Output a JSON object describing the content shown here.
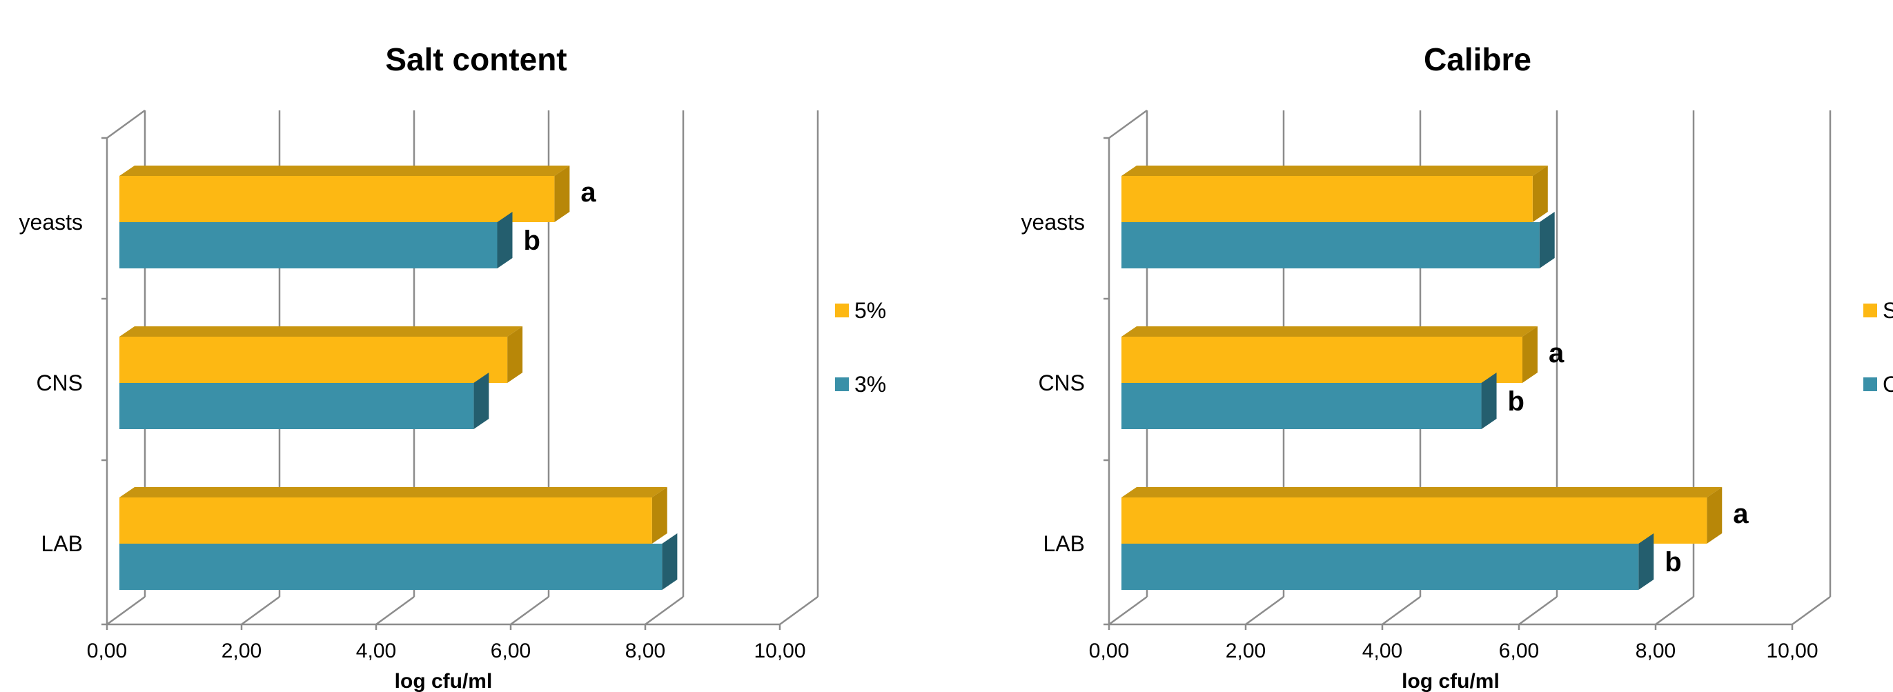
{
  "colors": {
    "series_top": "#FDB813",
    "series_top_dark": "#B88708",
    "series_top_shade": "#C89510",
    "series_bottom": "#3A90A8",
    "series_bottom_dark": "#245E6E",
    "grid": "#8C8C8C"
  },
  "chart_data": [
    {
      "type": "bar",
      "orientation": "horizontal",
      "title": "Salt content",
      "xlabel": "log cfu/ml",
      "xlim": [
        0,
        10
      ],
      "ticks": [
        "0,00",
        "2,00",
        "4,00",
        "6,00",
        "8,00",
        "10,00"
      ],
      "categories": [
        "yeasts",
        "CNS",
        "LAB"
      ],
      "series": [
        {
          "name": "5%",
          "values": [
            6.65,
            5.95,
            8.1
          ],
          "labels": [
            "a",
            "",
            ""
          ]
        },
        {
          "name": "3%",
          "values": [
            5.8,
            5.45,
            8.25
          ],
          "labels": [
            "b",
            "",
            ""
          ]
        }
      ],
      "legend": "right",
      "grid": true
    },
    {
      "type": "bar",
      "orientation": "horizontal",
      "title": "Calibre",
      "xlabel": "log cfu/ml",
      "xlim": [
        0,
        10
      ],
      "ticks": [
        "0,00",
        "2,00",
        "4,00",
        "6,00",
        "8,00",
        "10,00"
      ],
      "categories": [
        "yeasts",
        "CNS",
        "LAB"
      ],
      "series": [
        {
          "name": "S",
          "values": [
            6.2,
            6.05,
            8.75
          ],
          "labels": [
            "",
            "a",
            "a"
          ]
        },
        {
          "name": "C",
          "values": [
            6.3,
            5.45,
            7.75
          ],
          "labels": [
            "",
            "b",
            "b"
          ]
        }
      ],
      "legend": "right",
      "grid": true
    }
  ]
}
